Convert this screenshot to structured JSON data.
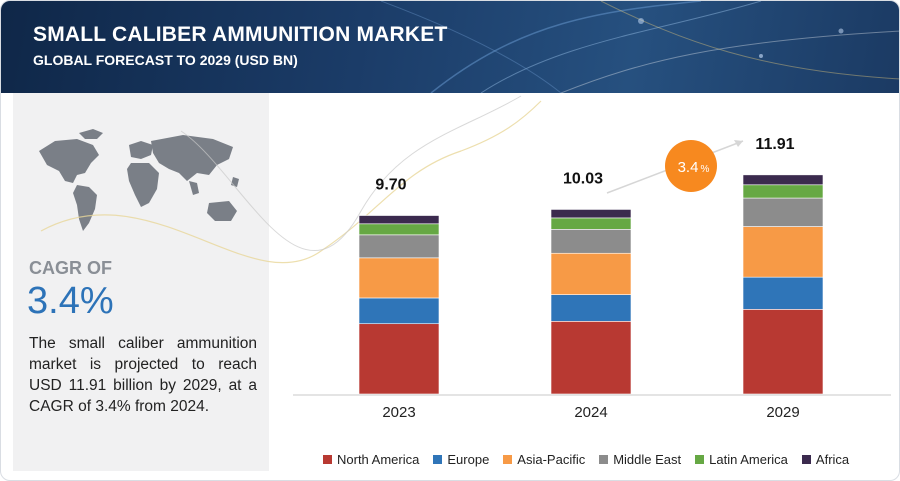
{
  "header": {
    "title": "SMALL CALIBER AMMUNITION MARKET",
    "subtitle": "GLOBAL FORECAST TO 2029 (USD BN)"
  },
  "sidebar": {
    "cagr_label": "CAGR OF",
    "cagr_value": "3.4%",
    "description": "The small caliber ammunition market is projected to reach USD 11.91 billion by 2029, at a CAGR of 3.4% from 2024."
  },
  "growth_badge": {
    "value": "3.4",
    "unit": "%"
  },
  "colors": {
    "North America": "#b83932",
    "Europe": "#2f75b8",
    "Asia-Pacific": "#f79a46",
    "Middle East": "#8c8c8c",
    "Latin America": "#66a844",
    "Africa": "#3b2a4e",
    "badge": "#f7891f",
    "header": "#1b3c68"
  },
  "chart_data": {
    "type": "bar",
    "stacked": true,
    "categories": [
      "2023",
      "2024",
      "2029"
    ],
    "totals": [
      "9.70",
      "10.03",
      "11.91"
    ],
    "series": [
      {
        "name": "North America",
        "values": [
          3.82,
          3.95,
          4.6
        ]
      },
      {
        "name": "Europe",
        "values": [
          1.4,
          1.45,
          1.75
        ]
      },
      {
        "name": "Asia-Pacific",
        "values": [
          2.18,
          2.25,
          2.75
        ]
      },
      {
        "name": "Middle East",
        "values": [
          1.25,
          1.3,
          1.55
        ]
      },
      {
        "name": "Latin America",
        "values": [
          0.6,
          0.62,
          0.72
        ]
      },
      {
        "name": "Africa",
        "values": [
          0.45,
          0.46,
          0.54
        ]
      }
    ],
    "legend_position": "bottom",
    "grid": false
  }
}
